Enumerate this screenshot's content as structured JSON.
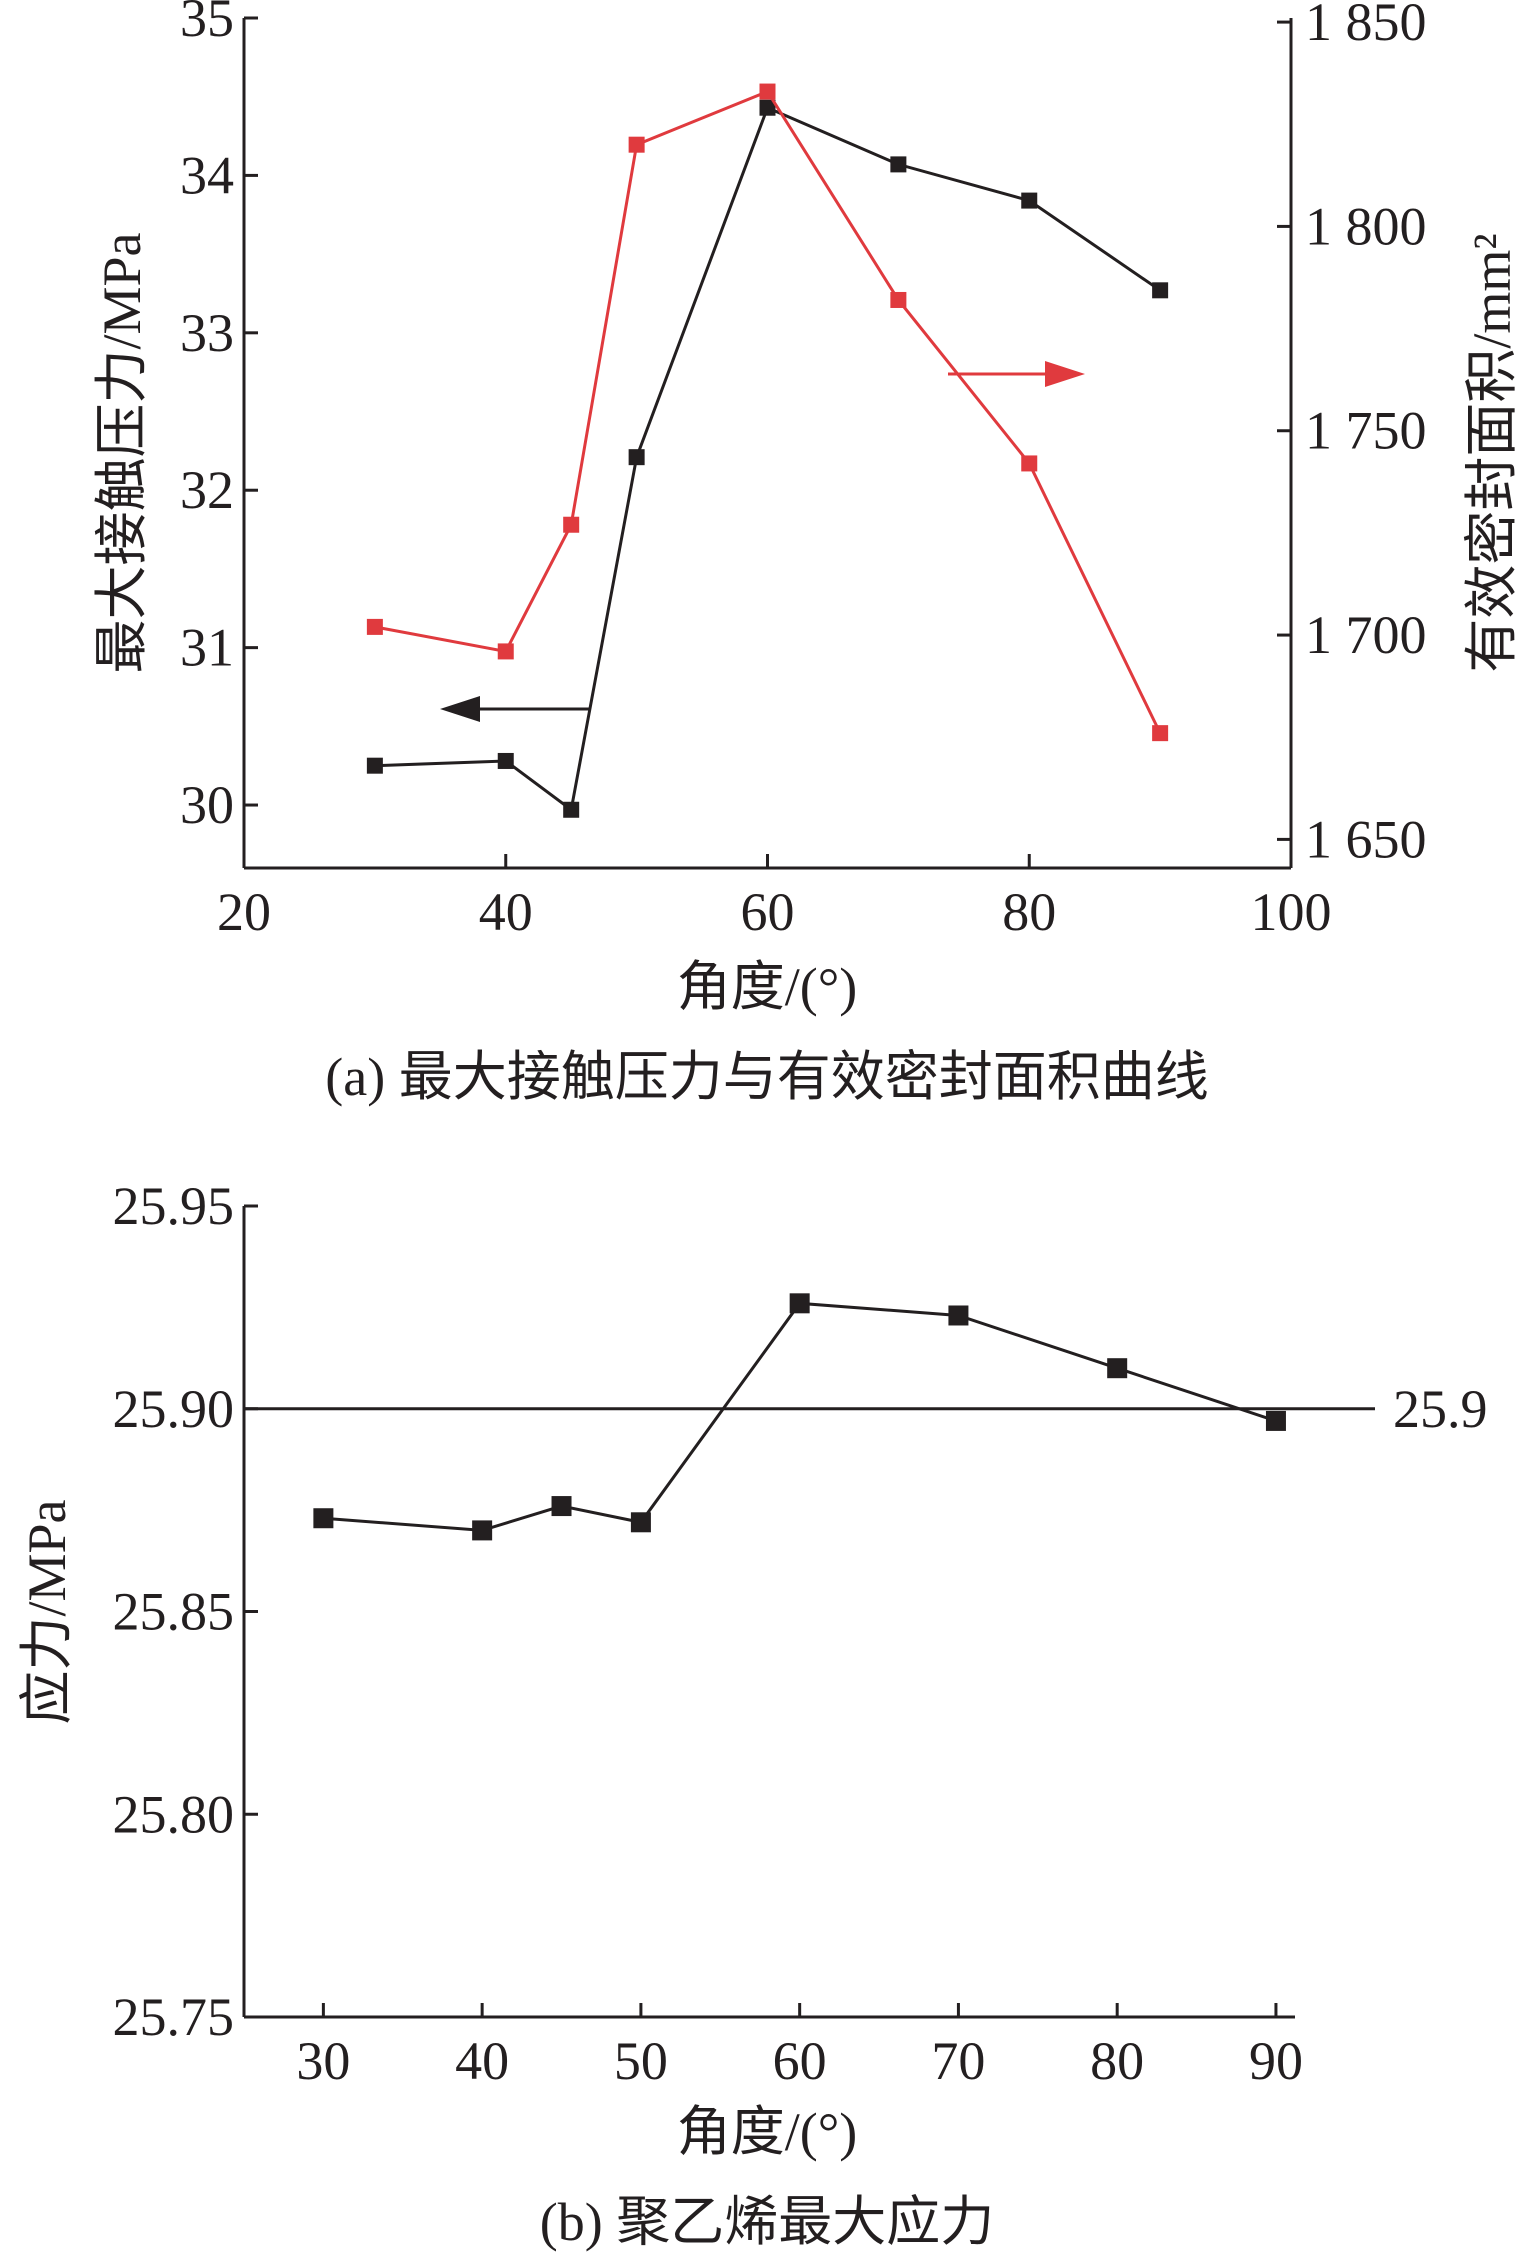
{
  "chart_data": [
    {
      "type": "line",
      "panel": "a",
      "caption": "(a) 最大接触压力与有效密封面积曲线",
      "xlabel": "角度/(°)",
      "ylabel": "最大接触压力/MPa",
      "y2label": "有效密封面积/mm²",
      "xlim": [
        20,
        100
      ],
      "ylim": [
        29.6,
        35
      ],
      "y2lim": [
        1643,
        1851
      ],
      "x_ticks": [
        "20",
        "40",
        "60",
        "80",
        "100"
      ],
      "y_ticks": [
        "30",
        "31",
        "32",
        "33",
        "34",
        "35"
      ],
      "y2_ticks": [
        "1 650",
        "1 700",
        "1 750",
        "1 800",
        "1 850"
      ],
      "grid": false,
      "series": [
        {
          "axis": "left",
          "color": "#231f20",
          "x": [
            30,
            40,
            45,
            50,
            60,
            70,
            80,
            90
          ],
          "values": [
            30.25,
            30.28,
            29.97,
            32.21,
            34.43,
            34.07,
            33.84,
            33.27
          ]
        },
        {
          "axis": "right",
          "color": "#e03a3e",
          "x": [
            30,
            40,
            45,
            50,
            60,
            70,
            80,
            90
          ],
          "values": [
            1702,
            1696,
            1727,
            1820,
            1833,
            1782,
            1742,
            1676
          ]
        }
      ]
    },
    {
      "type": "line",
      "panel": "b",
      "caption": "(b) 聚乙烯最大应力",
      "xlabel": "角度/(°)",
      "ylabel": "应力/MPa",
      "xlim": [
        25,
        91.2
      ],
      "ylim": [
        25.75,
        25.95
      ],
      "x_ticks": [
        "30",
        "40",
        "50",
        "60",
        "70",
        "80",
        "90"
      ],
      "y_ticks": [
        "25.75",
        "25.80",
        "25.85",
        "25.90",
        "25.95"
      ],
      "grid": false,
      "reference_line": {
        "value": 25.9,
        "label": "25.9"
      },
      "series": [
        {
          "color": "#231f20",
          "x": [
            30,
            40,
            45,
            50,
            60,
            70,
            80,
            90
          ],
          "values": [
            25.873,
            25.87,
            25.876,
            25.872,
            25.926,
            25.923,
            25.91,
            25.897
          ]
        }
      ]
    }
  ]
}
